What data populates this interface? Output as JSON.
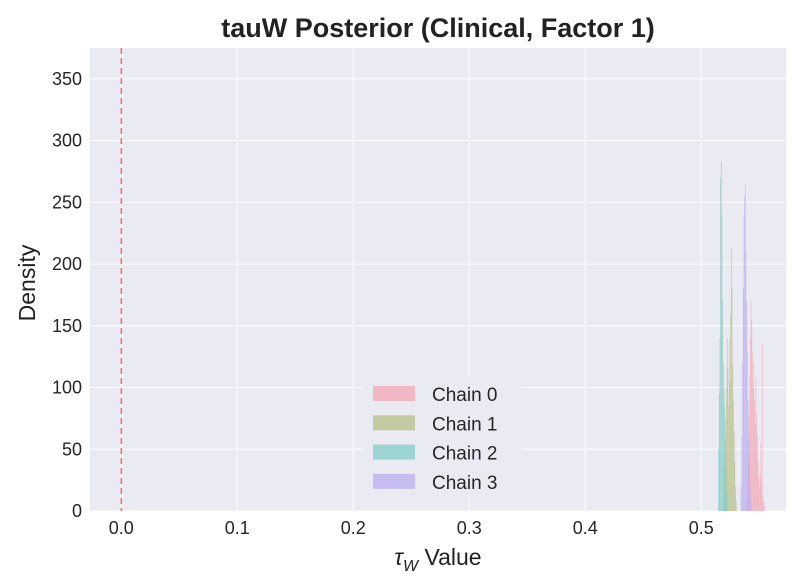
{
  "chart_data": {
    "type": "histogram",
    "title": "tauW Posterior (Clinical, Factor 1)",
    "xlabel_symbol": "τ",
    "xlabel_subscript": "W",
    "xlabel_text": " Value",
    "ylabel": "Density",
    "xlim": [
      -0.027,
      0.573
    ],
    "ylim": [
      0,
      375
    ],
    "xticks": [
      0.0,
      0.1,
      0.2,
      0.3,
      0.4,
      0.5
    ],
    "xtick_labels": [
      "0.0",
      "0.1",
      "0.2",
      "0.3",
      "0.4",
      "0.5"
    ],
    "yticks": [
      0,
      50,
      100,
      150,
      200,
      250,
      300,
      350
    ],
    "ytick_labels": [
      "0",
      "50",
      "100",
      "150",
      "200",
      "250",
      "300",
      "350"
    ],
    "grid": true,
    "legend_position": "lower-center",
    "reference_line": {
      "x": 0.0,
      "style": "dashed",
      "color": "#f07080"
    },
    "series": [
      {
        "name": "Chain 0",
        "color": "#f4a5b5",
        "bin_start": 0.539,
        "bin_width": 0.0006,
        "densities": [
          8,
          20,
          45,
          78,
          110,
          140,
          170,
          155,
          128,
          100,
          120,
          90,
          70,
          108,
          80,
          62,
          40,
          28,
          18,
          30,
          55,
          22,
          136,
          12,
          8,
          4
        ]
      },
      {
        "name": "Chain 1",
        "color": "#b5bf85",
        "bin_start": 0.519,
        "bin_width": 0.0006,
        "densities": [
          12,
          35,
          55,
          75,
          100,
          140,
          115,
          85,
          138,
          105,
          160,
          213,
          180,
          120,
          90,
          65,
          40,
          20,
          8
        ]
      },
      {
        "name": "Chain 2",
        "color": "#80ccc4",
        "bin_start": 0.5145,
        "bin_width": 0.0006,
        "densities": [
          50,
          95,
          140,
          270,
          283,
          240,
          170,
          120,
          100,
          85,
          60,
          35,
          15
        ]
      },
      {
        "name": "Chain 3",
        "color": "#bbadf0",
        "bin_start": 0.534,
        "bin_width": 0.0006,
        "densities": [
          20,
          60,
          120,
          180,
          240,
          255,
          265,
          210,
          170,
          130,
          90,
          60,
          40,
          20,
          10
        ]
      }
    ]
  }
}
